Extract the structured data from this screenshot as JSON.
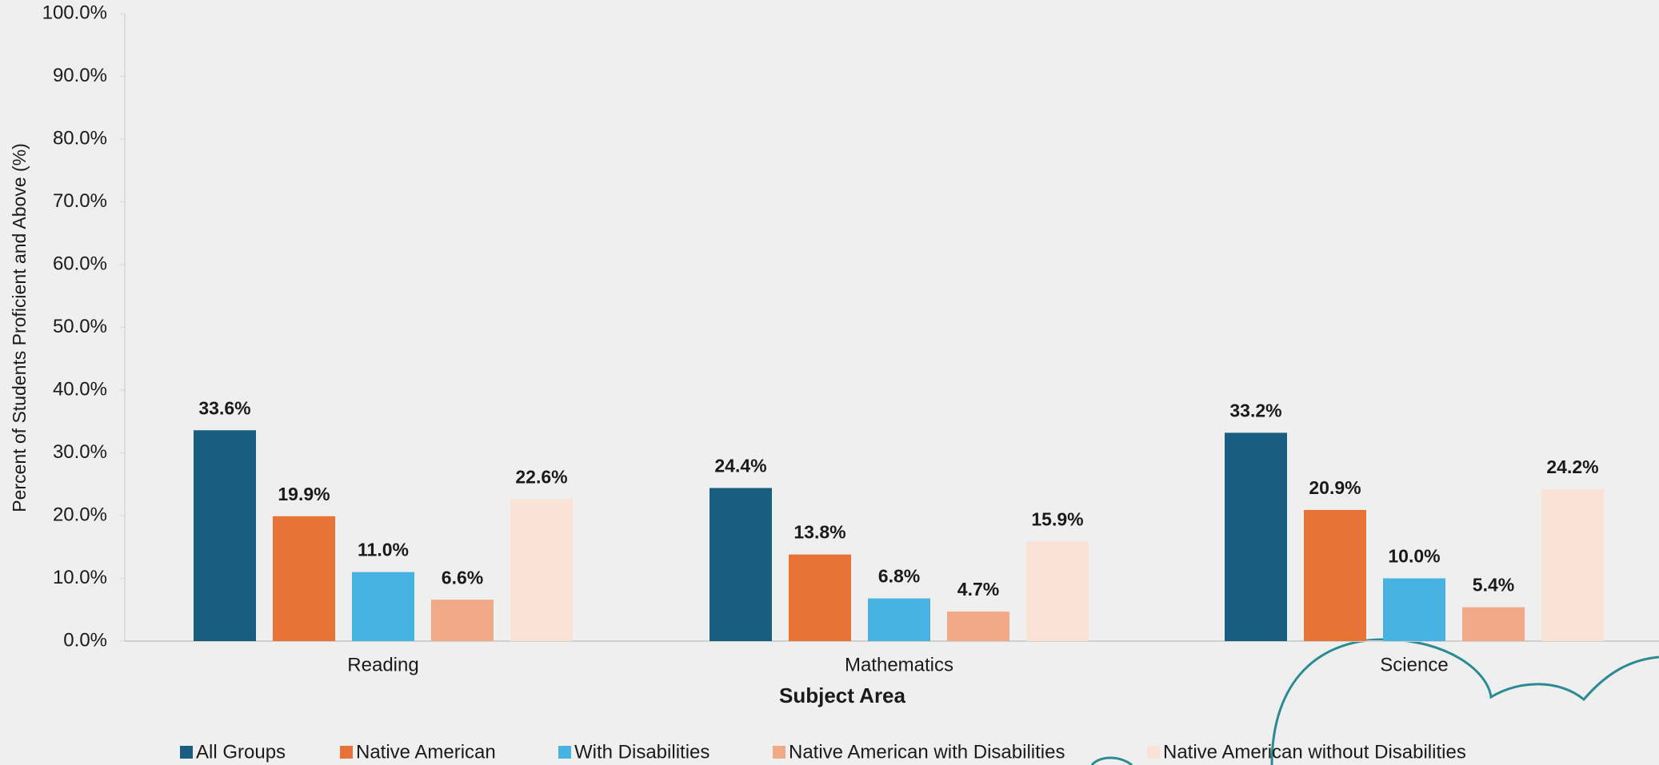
{
  "chart_data": {
    "type": "bar",
    "x_label": "Subject Area",
    "y_label": "Percent of Students Proficient and Above (%)",
    "categories": [
      "Reading",
      "Mathematics",
      "Science"
    ],
    "series": [
      {
        "name": "All Groups",
        "color": "#175e80",
        "values": [
          33.6,
          24.4,
          33.2
        ],
        "value_labels": [
          "33.6%",
          "24.4%",
          "33.2%"
        ]
      },
      {
        "name": "Native American",
        "color": "#e97236",
        "values": [
          19.9,
          13.8,
          20.9
        ],
        "value_labels": [
          "19.9%",
          "13.8%",
          "20.9%"
        ]
      },
      {
        "name": "With Disabilities",
        "color": "#47b3e2",
        "values": [
          11.0,
          6.8,
          10.0
        ],
        "value_labels": [
          "11.0%",
          "6.8%",
          "10.0%"
        ]
      },
      {
        "name": "Native American with Disabilities",
        "color": "#f2aa86",
        "values": [
          6.6,
          4.7,
          5.4
        ],
        "value_labels": [
          "6.6%",
          "4.7%",
          "5.4%"
        ]
      },
      {
        "name": "Native American without Disabilities",
        "color": "#fbe2d6",
        "values": [
          22.6,
          15.9,
          24.2
        ],
        "value_labels": [
          "22.6%",
          "15.9%",
          "24.2%"
        ]
      }
    ],
    "ylim": [
      0,
      100
    ],
    "yticks": [
      {
        "value": 0,
        "label": "0.0%"
      },
      {
        "value": 10,
        "label": "10.0%"
      },
      {
        "value": 20,
        "label": "20.0%"
      },
      {
        "value": 30,
        "label": "30.0%"
      },
      {
        "value": 40,
        "label": "40.0%"
      },
      {
        "value": 50,
        "label": "50.0%"
      },
      {
        "value": 60,
        "label": "60.0%"
      },
      {
        "value": 70,
        "label": "70.0%"
      },
      {
        "value": 80,
        "label": "80.0%"
      },
      {
        "value": 90,
        "label": "90.0%"
      },
      {
        "value": 100,
        "label": "100.0%"
      }
    ],
    "legend": "bottom"
  }
}
